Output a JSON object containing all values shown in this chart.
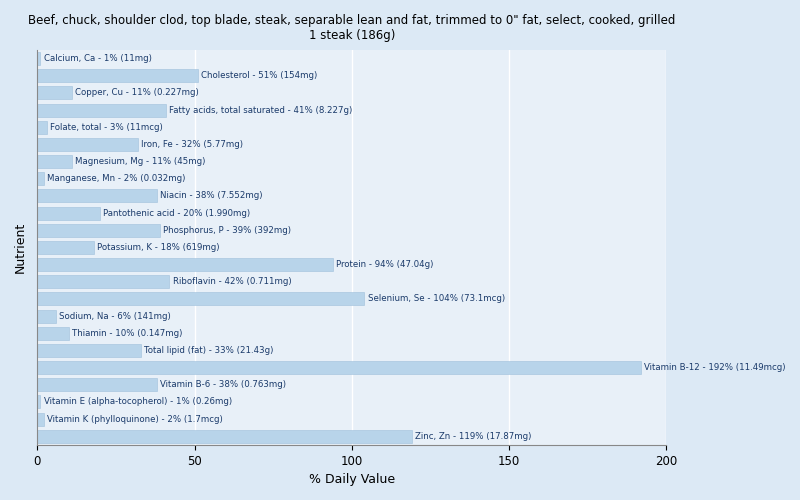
{
  "title": "Beef, chuck, shoulder clod, top blade, steak, separable lean and fat, trimmed to 0\" fat, select, cooked, grilled\n1 steak (186g)",
  "xlabel": "% Daily Value",
  "ylabel": "Nutrient",
  "xlim": [
    0,
    200
  ],
  "xticks": [
    0,
    50,
    100,
    150,
    200
  ],
  "background_color": "#dce9f5",
  "plot_bg_color": "#e8f0f8",
  "bar_color": "#b8d4ea",
  "bar_edge_color": "#a0c0dc",
  "text_color": "#1a3a6a",
  "grid_color": "#ffffff",
  "nutrients": [
    {
      "name": "Calcium, Ca - 1% (11mg)",
      "value": 1
    },
    {
      "name": "Cholesterol - 51% (154mg)",
      "value": 51
    },
    {
      "name": "Copper, Cu - 11% (0.227mg)",
      "value": 11
    },
    {
      "name": "Fatty acids, total saturated - 41% (8.227g)",
      "value": 41
    },
    {
      "name": "Folate, total - 3% (11mcg)",
      "value": 3
    },
    {
      "name": "Iron, Fe - 32% (5.77mg)",
      "value": 32
    },
    {
      "name": "Magnesium, Mg - 11% (45mg)",
      "value": 11
    },
    {
      "name": "Manganese, Mn - 2% (0.032mg)",
      "value": 2
    },
    {
      "name": "Niacin - 38% (7.552mg)",
      "value": 38
    },
    {
      "name": "Pantothenic acid - 20% (1.990mg)",
      "value": 20
    },
    {
      "name": "Phosphorus, P - 39% (392mg)",
      "value": 39
    },
    {
      "name": "Potassium, K - 18% (619mg)",
      "value": 18
    },
    {
      "name": "Protein - 94% (47.04g)",
      "value": 94
    },
    {
      "name": "Riboflavin - 42% (0.711mg)",
      "value": 42
    },
    {
      "name": "Selenium, Se - 104% (73.1mcg)",
      "value": 104
    },
    {
      "name": "Sodium, Na - 6% (141mg)",
      "value": 6
    },
    {
      "name": "Thiamin - 10% (0.147mg)",
      "value": 10
    },
    {
      "name": "Total lipid (fat) - 33% (21.43g)",
      "value": 33
    },
    {
      "name": "Vitamin B-12 - 192% (11.49mcg)",
      "value": 192
    },
    {
      "name": "Vitamin B-6 - 38% (0.763mg)",
      "value": 38
    },
    {
      "name": "Vitamin E (alpha-tocopherol) - 1% (0.26mg)",
      "value": 1
    },
    {
      "name": "Vitamin K (phylloquinone) - 2% (1.7mcg)",
      "value": 2
    },
    {
      "name": "Zinc, Zn - 119% (17.87mg)",
      "value": 119
    }
  ]
}
